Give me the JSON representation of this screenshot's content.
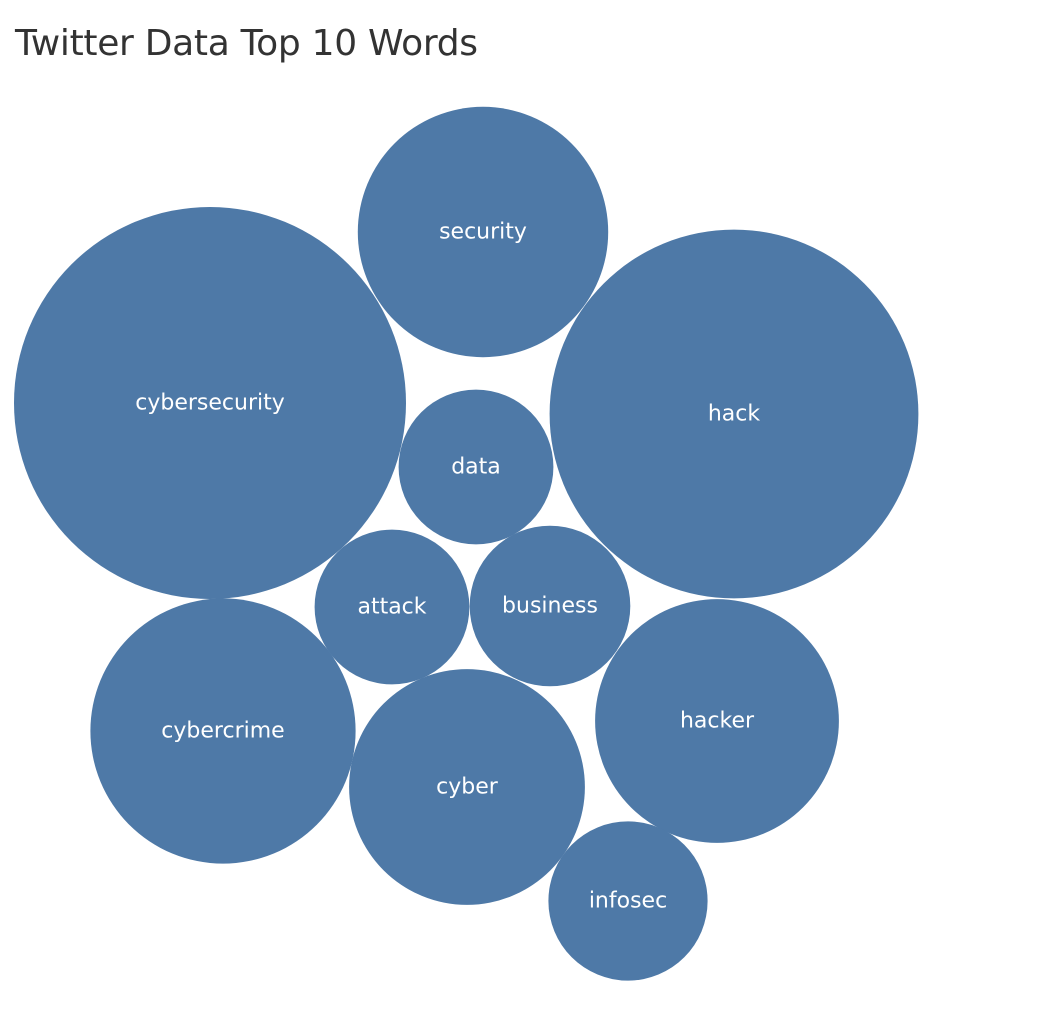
{
  "chart_data": {
    "type": "bubble",
    "title": "Twitter Data Top 10 Words",
    "color": "#4e79a7",
    "label_color": "#ffffff",
    "relative_size_basis": "cybersecurity = 1.0 (bubble area proportional to value; no values printed)",
    "bubbles": [
      {
        "label": "cybersecurity",
        "value": 1.0
      },
      {
        "label": "hack",
        "value": 0.885
      },
      {
        "label": "cybercrime",
        "value": 0.458
      },
      {
        "label": "hacker",
        "value": 0.387
      },
      {
        "label": "security",
        "value": 0.408
      },
      {
        "label": "cyber",
        "value": 0.362
      },
      {
        "label": "infosec",
        "value": 0.165
      },
      {
        "label": "business",
        "value": 0.168
      },
      {
        "label": "attack",
        "value": 0.156
      },
      {
        "label": "data",
        "value": 0.156
      }
    ]
  }
}
